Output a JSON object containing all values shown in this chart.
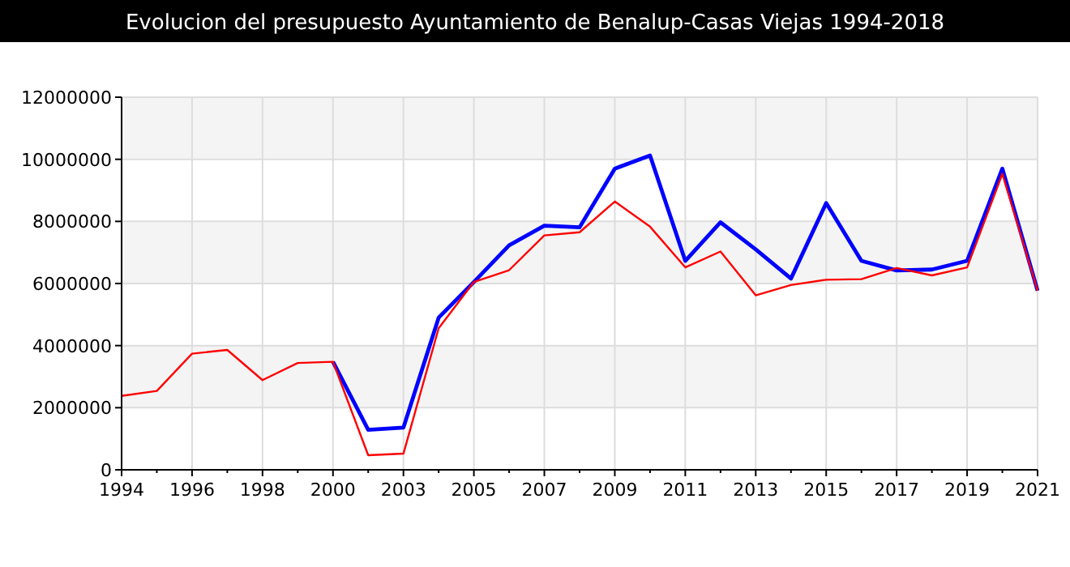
{
  "chart_data": {
    "type": "line",
    "title": "Evolucion del presupuesto Ayuntamiento de Benalup-Casas Viejas 1994-2018",
    "categories": [
      "1994",
      null,
      "1996",
      null,
      "1998",
      null,
      "2000",
      null,
      "2003",
      null,
      "2005",
      null,
      "2007",
      null,
      "2009",
      null,
      "2011",
      null,
      "2013",
      null,
      "2015",
      null,
      "2017",
      null,
      "2019",
      null,
      "2021"
    ],
    "series": [
      {
        "color": "#0000ff",
        "values": [
          null,
          null,
          null,
          null,
          null,
          null,
          3480000,
          1290000,
          1360000,
          4900000,
          6050000,
          7230000,
          7860000,
          7810000,
          9700000,
          10120000,
          6730000,
          7970000,
          7100000,
          6160000,
          8590000,
          6730000,
          6420000,
          6450000,
          6730000,
          9700000,
          5770000
        ]
      },
      {
        "color": "#ff0000",
        "values": [
          2380000,
          2540000,
          3740000,
          3860000,
          2890000,
          3440000,
          3480000,
          470000,
          520000,
          4560000,
          6050000,
          6430000,
          7550000,
          7650000,
          8640000,
          7830000,
          6520000,
          7030000,
          5620000,
          5950000,
          6120000,
          6140000,
          6500000,
          6260000,
          6520000,
          9530000,
          5770000
        ]
      }
    ],
    "ylim": [
      0,
      12000000
    ],
    "yticks": [
      0,
      2000000,
      4000000,
      6000000,
      8000000,
      10000000,
      12000000
    ],
    "grid": true
  }
}
